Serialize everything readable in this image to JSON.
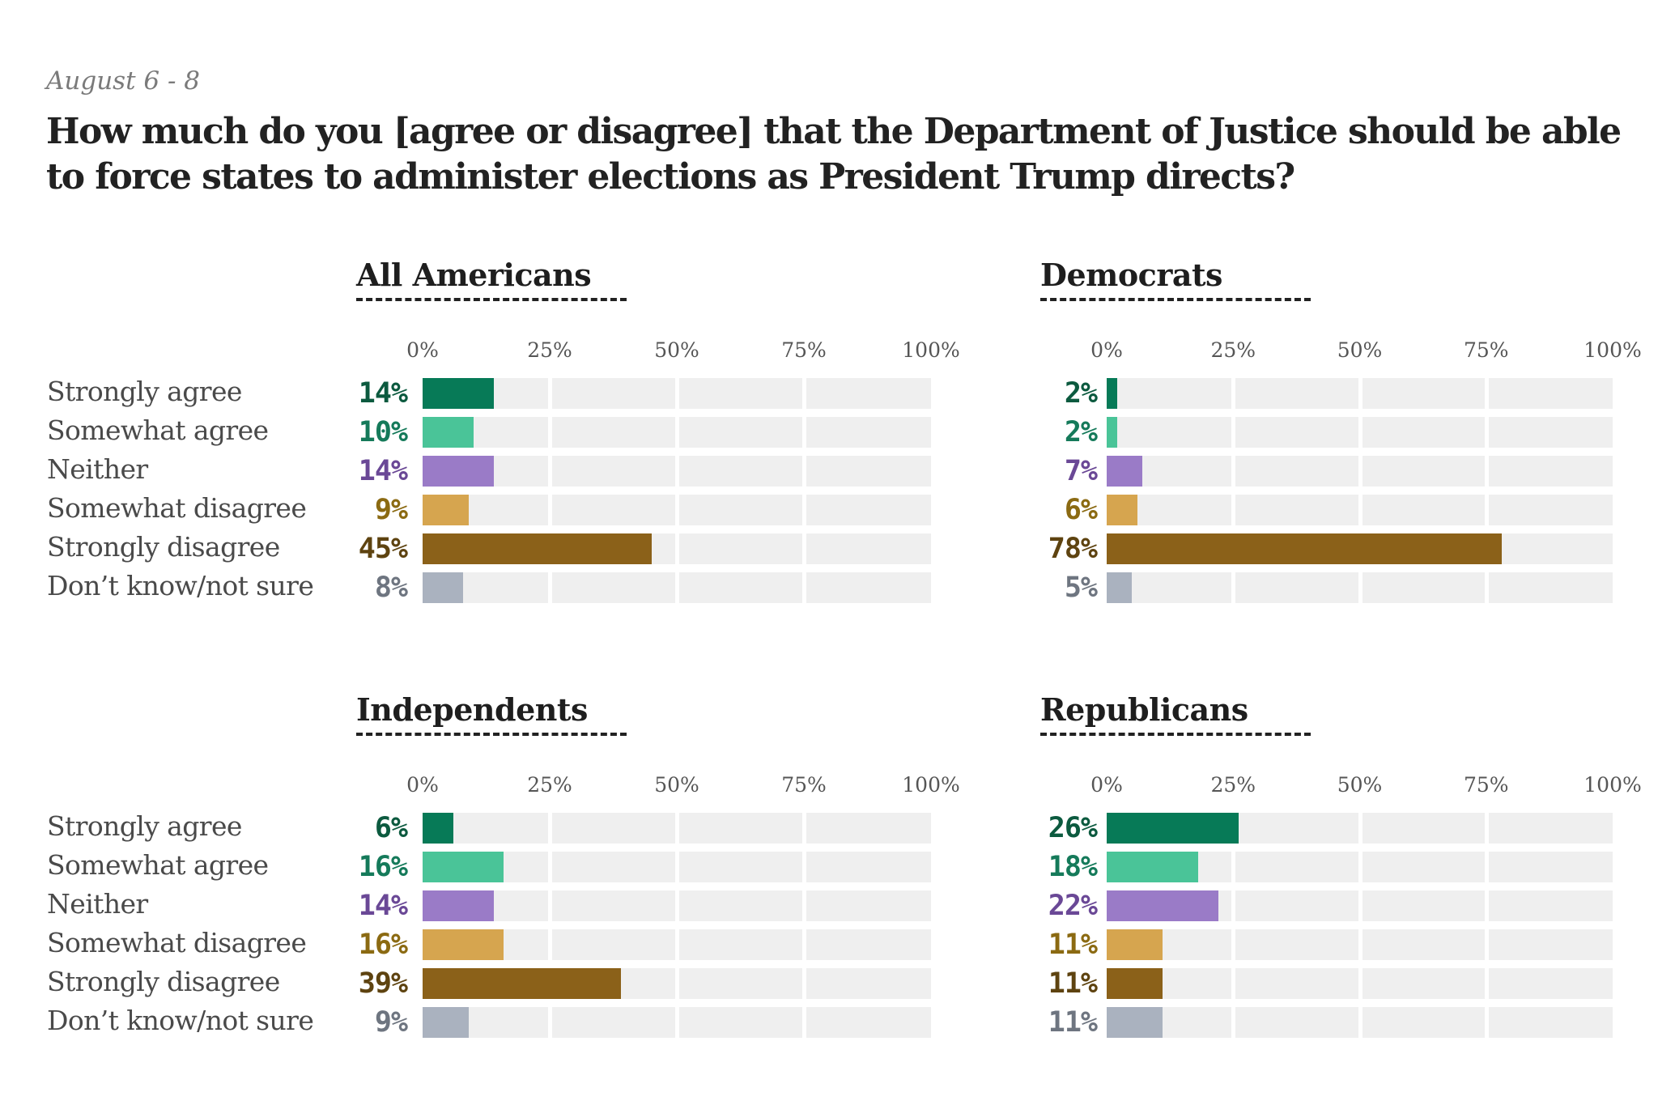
{
  "header": {
    "date": "August 6 - 8",
    "title": "How much do you [agree or disagree] that the Department of Justice should be able to force states to administer elections as President Trump directs?"
  },
  "colors": {
    "Strongly agree": {
      "bar": "#077a57",
      "label": "#0c5a3f"
    },
    "Somewhat agree": {
      "bar": "#4ac498",
      "label": "#157a5a"
    },
    "Neither": {
      "bar": "#9a7bc7",
      "label": "#6a4896"
    },
    "Somewhat disagree": {
      "bar": "#d6a54f",
      "label": "#8b6a12"
    },
    "Strongly disagree": {
      "bar": "#8b6119",
      "label": "#5e4310"
    },
    "Don’t know/not sure": {
      "bar": "#aab2bf",
      "label": "#6e7580"
    }
  },
  "chart_data": {
    "type": "bar",
    "orientation": "horizontal",
    "title": "How much do you [agree or disagree] that the Department of Justice should be able to force states to administer elections as President Trump directs?",
    "subtitle": "August 6 - 8",
    "categories": [
      "Strongly agree",
      "Somewhat agree",
      "Neither",
      "Somewhat disagree",
      "Strongly disagree",
      "Don’t know/not sure"
    ],
    "xlim": [
      0,
      100
    ],
    "x_ticks": [
      "0%",
      "25%",
      "50%",
      "75%",
      "100%"
    ],
    "grid": true,
    "panels": [
      {
        "name": "All Americans",
        "values": [
          14,
          10,
          14,
          9,
          45,
          8
        ],
        "labels": [
          "14%",
          "10%",
          "14%",
          "9%",
          "45%",
          "8%"
        ]
      },
      {
        "name": "Democrats",
        "values": [
          2,
          2,
          7,
          6,
          78,
          5
        ],
        "labels": [
          "2%",
          "2%",
          "7%",
          "6%",
          "78%",
          "5%"
        ]
      },
      {
        "name": "Independents",
        "values": [
          6,
          16,
          14,
          16,
          39,
          9
        ],
        "labels": [
          "6%",
          "16%",
          "14%",
          "16%",
          "39%",
          "9%"
        ]
      },
      {
        "name": "Republicans",
        "values": [
          26,
          18,
          22,
          11,
          11,
          11
        ],
        "labels": [
          "26%",
          "18%",
          "22%",
          "11%",
          "11%",
          "11%"
        ]
      }
    ]
  }
}
